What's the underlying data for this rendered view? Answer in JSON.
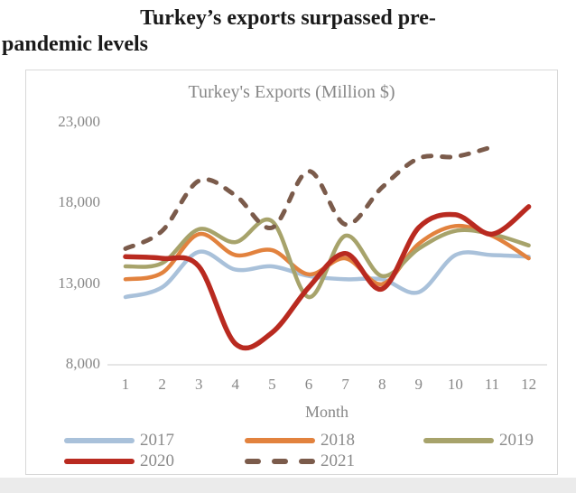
{
  "header": {
    "title": "Turkey’s exports surpassed pre-pandemic levels",
    "title_lines": [
      "Turkey’s exports surpassed pre-",
      "pandemic levels"
    ]
  },
  "chart_data": {
    "type": "line",
    "title": "Turkey's Exports (Million $)",
    "xlabel": "Month",
    "ylabel": "",
    "x": [
      1,
      2,
      3,
      4,
      5,
      6,
      7,
      8,
      9,
      10,
      11,
      12
    ],
    "y_ticks": [
      23000,
      18000,
      13000,
      8000
    ],
    "y_tick_labels": [
      "23,000",
      "18,000",
      "13,000",
      "8,000"
    ],
    "ylim": [
      8000,
      24000
    ],
    "grid": false,
    "legend_position": "bottom",
    "units": "Million $",
    "series": [
      {
        "name": "2017",
        "color": "#a9c1da",
        "style": "solid",
        "width": 4.5,
        "values": [
          12200,
          12800,
          15000,
          13900,
          14100,
          13500,
          13300,
          13300,
          12500,
          14800,
          14800,
          14700
        ]
      },
      {
        "name": "2018",
        "color": "#e2823e",
        "style": "solid",
        "width": 4.5,
        "values": [
          13300,
          13700,
          16100,
          14800,
          15100,
          13600,
          14600,
          13000,
          15500,
          16600,
          16000,
          14600
        ]
      },
      {
        "name": "2019",
        "color": "#a7a36b",
        "style": "solid",
        "width": 4.5,
        "values": [
          14100,
          14300,
          16400,
          15600,
          16900,
          12200,
          16000,
          13500,
          15200,
          16300,
          16100,
          15400
        ]
      },
      {
        "name": "2020",
        "color": "#b92a20",
        "style": "solid",
        "width": 5.5,
        "values": [
          14700,
          14600,
          14100,
          9300,
          10000,
          12800,
          14900,
          12700,
          16500,
          17300,
          16100,
          17800
        ]
      },
      {
        "name": "2021",
        "color": "#7b5b4b",
        "style": "dashed",
        "width": 5,
        "values": [
          15200,
          16300,
          19400,
          18500,
          16500,
          20000,
          16700,
          19000,
          20800,
          20900,
          21500,
          null
        ]
      }
    ]
  }
}
